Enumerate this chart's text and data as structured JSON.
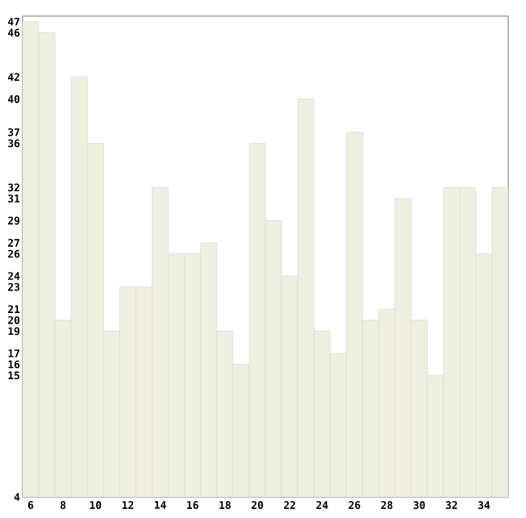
{
  "chart_data": {
    "type": "bar",
    "x": [
      6,
      7,
      8,
      9,
      10,
      11,
      12,
      13,
      14,
      15,
      16,
      17,
      18,
      19,
      20,
      21,
      22,
      23,
      24,
      25,
      26,
      27,
      28,
      29,
      30,
      31,
      32,
      33,
      34,
      35
    ],
    "values": [
      47,
      46,
      20,
      42,
      36,
      19,
      23,
      23,
      32,
      26,
      26,
      27,
      19,
      16,
      36,
      29,
      24,
      40,
      19,
      17,
      37,
      20,
      21,
      31,
      20,
      15,
      32,
      32,
      26,
      32
    ],
    "color": "#efefe0",
    "xlim": [
      5.5,
      35.5
    ],
    "ylim": [
      4,
      47.5
    ],
    "xticks": [
      6,
      8,
      10,
      12,
      14,
      16,
      18,
      20,
      22,
      24,
      26,
      28,
      30,
      32,
      34
    ],
    "yticks": [
      4,
      15,
      16,
      17,
      19,
      20,
      21,
      23,
      24,
      26,
      27,
      29,
      31,
      32,
      36,
      37,
      40,
      42,
      46,
      47
    ],
    "tick_labels": "xy"
  }
}
